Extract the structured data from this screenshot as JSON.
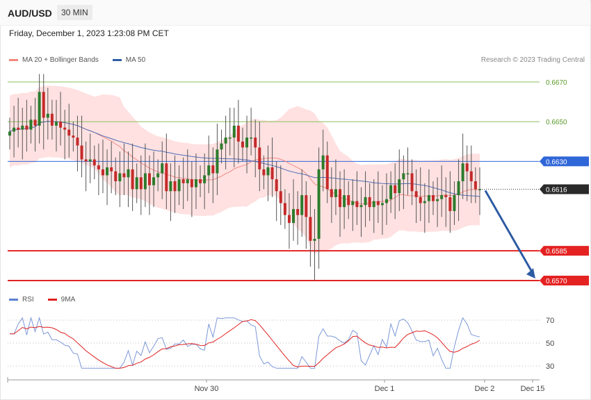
{
  "header": {
    "symbol": "AUD/USD",
    "timeframe": "30 MIN",
    "datetime": "Friday, December 1, 2023 1:23:08 PM CET",
    "credit": "Research © 2023 Trading Central"
  },
  "legend_main": [
    {
      "label": "MA 20 + Bollinger Bands",
      "color": "#f4877a"
    },
    {
      "label": "MA 50",
      "color": "#2e5ea6"
    }
  ],
  "legend_rsi": [
    {
      "label": "RSI",
      "color": "#5a7fd1"
    },
    {
      "label": "9MA",
      "color": "#e02020"
    }
  ],
  "colors": {
    "up": "#2c7b2c",
    "down": "#c42a2a",
    "band_fill": "#ffdcdc",
    "ma20": "#f08b84",
    "ma50": "#4d6fb8",
    "resistance": "#8ac15e",
    "pivot": "#2f66d8",
    "support": "#e42222",
    "arrow": "#2d5ba3"
  },
  "chart_data": [
    {
      "type": "candlestick",
      "title": "",
      "ylim": [
        0.6564,
        0.6684
      ],
      "x_ticks": [
        "Nov 30",
        "Dec 1",
        "Dec 2",
        "Dec 15"
      ],
      "indicators": [
        "MA 20 + Bollinger Bands",
        "MA 50"
      ],
      "levels": [
        {
          "value": 0.667,
          "label": "0.6670",
          "kind": "resistance"
        },
        {
          "value": 0.665,
          "label": "0.6650",
          "kind": "resistance"
        },
        {
          "value": 0.663,
          "label": "0.6630",
          "kind": "pivot"
        },
        {
          "value": 0.6616,
          "label": "0.6616",
          "kind": "last"
        },
        {
          "value": 0.6585,
          "label": "0.6585",
          "kind": "support"
        },
        {
          "value": 0.657,
          "label": "0.6570",
          "kind": "support"
        }
      ],
      "ohlc_close": [
        0.6645,
        0.6647,
        0.6646,
        0.6648,
        0.6646,
        0.6651,
        0.6648,
        0.6665,
        0.6652,
        0.6654,
        0.6648,
        0.665,
        0.6647,
        0.6646,
        0.6643,
        0.6642,
        0.6638,
        0.6631,
        0.663,
        0.6631,
        0.6628,
        0.6626,
        0.6623,
        0.6627,
        0.6625,
        0.662,
        0.6624,
        0.6622,
        0.6626,
        0.6616,
        0.6622,
        0.6616,
        0.6624,
        0.6618,
        0.6622,
        0.6624,
        0.6629,
        0.6615,
        0.662,
        0.6615,
        0.6621,
        0.6619,
        0.6621,
        0.6617,
        0.6621,
        0.6619,
        0.6623,
        0.6628,
        0.6624,
        0.6636,
        0.6639,
        0.6642,
        0.6642,
        0.6648,
        0.664,
        0.6637,
        0.6642,
        0.6642,
        0.6637,
        0.6626,
        0.6623,
        0.6627,
        0.6621,
        0.6615,
        0.6609,
        0.6603,
        0.6599,
        0.6606,
        0.6603,
        0.6613,
        0.6602,
        0.659,
        0.6591,
        0.6626,
        0.6633,
        0.6616,
        0.6612,
        0.6616,
        0.6607,
        0.6613,
        0.6608,
        0.661,
        0.6607,
        0.6608,
        0.6612,
        0.6607,
        0.661,
        0.6608,
        0.6609,
        0.6611,
        0.6618,
        0.6614,
        0.6621,
        0.6624,
        0.6624,
        0.6615,
        0.6612,
        0.6609,
        0.661,
        0.6613,
        0.661,
        0.6611,
        0.6613,
        0.6612,
        0.6605,
        0.6613,
        0.662,
        0.6629,
        0.6625,
        0.662,
        0.6616,
        0.6616
      ],
      "rsi": {
        "ylim": [
          22,
          78
        ],
        "ticks": [
          70,
          50,
          30
        ]
      }
    }
  ]
}
